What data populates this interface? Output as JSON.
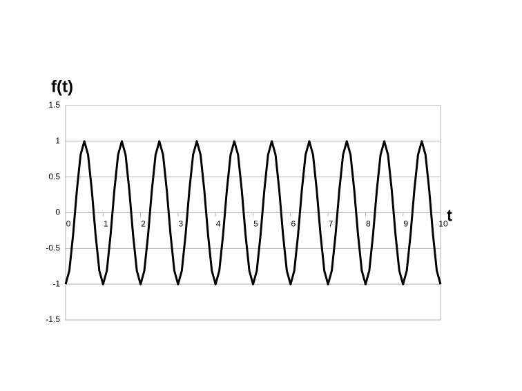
{
  "chart_data": {
    "type": "line",
    "y_label": "f(t)",
    "x_label": "t",
    "x": [
      0,
      0.1,
      0.2,
      0.3,
      0.4,
      0.5,
      0.6,
      0.7,
      0.8,
      0.9,
      1,
      1.1,
      1.2,
      1.3,
      1.4,
      1.5,
      1.6,
      1.7,
      1.8,
      1.9,
      2,
      2.1,
      2.2,
      2.3,
      2.4,
      2.5,
      2.6,
      2.7,
      2.8,
      2.9,
      3,
      3.1,
      3.2,
      3.3,
      3.4,
      3.5,
      3.6,
      3.7,
      3.8,
      3.9,
      4,
      4.1,
      4.2,
      4.3,
      4.4,
      4.5,
      4.6,
      4.7,
      4.8,
      4.9,
      5,
      5.1,
      5.2,
      5.3,
      5.4,
      5.5,
      5.6,
      5.7,
      5.8,
      5.9,
      6,
      6.1,
      6.2,
      6.3,
      6.4,
      6.5,
      6.6,
      6.7,
      6.8,
      6.9,
      7,
      7.1,
      7.2,
      7.3,
      7.4,
      7.5,
      7.6,
      7.7,
      7.8,
      7.9,
      8,
      8.1,
      8.2,
      8.3,
      8.4,
      8.5,
      8.6,
      8.7,
      8.8,
      8.9,
      9,
      9.1,
      9.2,
      9.3,
      9.4,
      9.5,
      9.6,
      9.7,
      9.8,
      9.9,
      10
    ],
    "series": [
      {
        "color": "#000000",
        "values": [
          -1,
          -0.81,
          -0.31,
          0.31,
          0.81,
          1,
          0.81,
          0.31,
          -0.31,
          -0.81,
          -1,
          -0.81,
          -0.31,
          0.31,
          0.81,
          1,
          0.81,
          0.31,
          -0.31,
          -0.81,
          -1,
          -0.81,
          -0.31,
          0.31,
          0.81,
          1,
          0.81,
          0.31,
          -0.31,
          -0.81,
          -1,
          -0.81,
          -0.31,
          0.31,
          0.81,
          1,
          0.81,
          0.31,
          -0.31,
          -0.81,
          -1,
          -0.81,
          -0.31,
          0.31,
          0.81,
          1,
          0.81,
          0.31,
          -0.31,
          -0.81,
          -1,
          -0.81,
          -0.31,
          0.31,
          0.81,
          1,
          0.81,
          0.31,
          -0.31,
          -0.81,
          -1,
          -0.81,
          -0.31,
          0.31,
          0.81,
          1,
          0.81,
          0.31,
          -0.31,
          -0.81,
          -1,
          -0.81,
          -0.31,
          0.31,
          0.81,
          1,
          0.81,
          0.31,
          -0.31,
          -0.81,
          -1,
          -0.81,
          -0.31,
          0.31,
          0.81,
          1,
          0.81,
          0.31,
          -0.31,
          -0.81,
          -1,
          -0.81,
          -0.31,
          0.31,
          0.81,
          1,
          0.81,
          0.31,
          -0.31,
          -0.81,
          -1
        ]
      }
    ],
    "xlim": [
      0,
      10
    ],
    "xticks": [
      0,
      1,
      2,
      3,
      4,
      5,
      6,
      7,
      8,
      9,
      10
    ],
    "ylim": [
      -1.5,
      1.5
    ],
    "yticks": [
      -1.5,
      -1,
      -0.5,
      0,
      0.5,
      1,
      1.5
    ],
    "grid": true
  }
}
